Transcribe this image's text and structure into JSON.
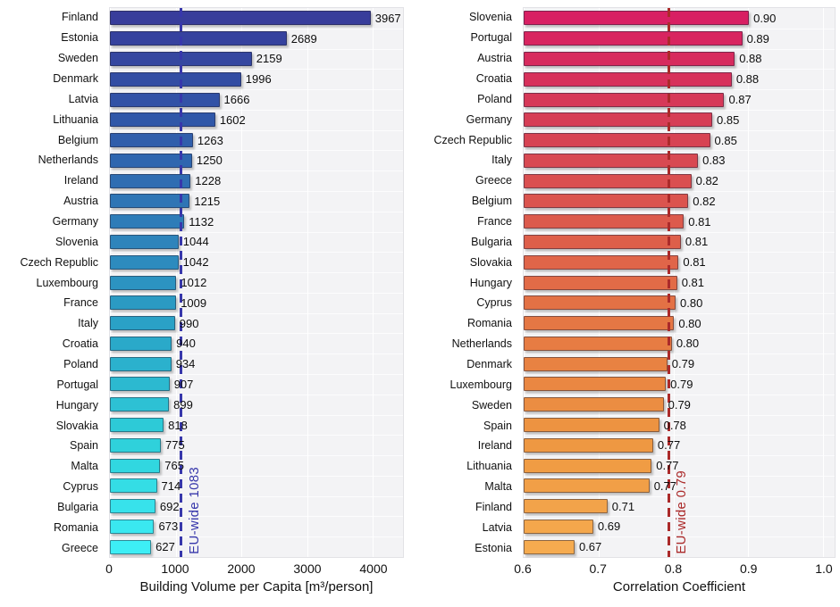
{
  "plot_style": {
    "plot_background": "#f3f3f5",
    "grid_color": "#ffffff",
    "figure_background": "#ffffff"
  },
  "chart_data": [
    {
      "type": "bar",
      "orientation": "horizontal",
      "title": "",
      "xlabel": "Building Volume per Capita [m³/person]",
      "ylabel": "",
      "axis": {
        "min": 0,
        "max": 4460,
        "ticks": [
          0,
          1000,
          2000,
          3000,
          4000
        ],
        "tick_labels": [
          "0",
          "1000",
          "2000",
          "3000",
          "4000"
        ]
      },
      "eu_line": {
        "value": 1083,
        "label": "EU-wide 1083",
        "color": "#3737ab"
      },
      "color_stops": [
        "#383d9b",
        "#3058a9",
        "#2e7fb9",
        "#2aa6c8",
        "#2ed0da",
        "#3deef5"
      ],
      "categories": [
        "Finland",
        "Estonia",
        "Sweden",
        "Denmark",
        "Latvia",
        "Lithuania",
        "Belgium",
        "Netherlands",
        "Ireland",
        "Austria",
        "Germany",
        "Slovenia",
        "Czech Republic",
        "Luxembourg",
        "France",
        "Italy",
        "Croatia",
        "Poland",
        "Portugal",
        "Hungary",
        "Slovakia",
        "Spain",
        "Malta",
        "Cyprus",
        "Bulgaria",
        "Romania",
        "Greece"
      ],
      "values": [
        3967,
        2689,
        2159,
        1996,
        1666,
        1602,
        1263,
        1250,
        1228,
        1215,
        1132,
        1044,
        1042,
        1012,
        1009,
        990,
        940,
        934,
        907,
        899,
        818,
        775,
        765,
        714,
        692,
        673,
        627
      ],
      "value_labels": [
        "3967",
        "2689",
        "2159",
        "1996",
        "1666",
        "1602",
        "1263",
        "1250",
        "1228",
        "1215",
        "1132",
        "1044",
        "1042",
        "1012",
        "1009",
        "990",
        "940",
        "934",
        "907",
        "899",
        "818",
        "775",
        "765",
        "714",
        "692",
        "673",
        "627"
      ]
    },
    {
      "type": "bar",
      "orientation": "horizontal",
      "title": "",
      "xlabel": "Correlation Coefficient",
      "ylabel": "",
      "axis": {
        "min": 0.6,
        "max": 1.0155,
        "ticks": [
          0.6,
          0.7,
          0.8,
          0.9,
          1.0
        ],
        "tick_labels": [
          "0.6",
          "0.7",
          "0.8",
          "0.9",
          "1.0"
        ]
      },
      "eu_line": {
        "value": 0.7935,
        "label": "EU-wide 0.79",
        "color": "#ab2a2a"
      },
      "color_stops": [
        "#d81f63",
        "#d63f55",
        "#dd5c4b",
        "#e67a43",
        "#ee9741",
        "#f5ab4f"
      ],
      "categories": [
        "Slovenia",
        "Portugal",
        "Austria",
        "Croatia",
        "Poland",
        "Germany",
        "Czech Republic",
        "Italy",
        "Greece",
        "Belgium",
        "France",
        "Bulgaria",
        "Slovakia",
        "Hungary",
        "Cyprus",
        "Romania",
        "Netherlands",
        "Denmark",
        "Luxembourg",
        "Sweden",
        "Spain",
        "Ireland",
        "Lithuania",
        "Malta",
        "Finland",
        "Latvia",
        "Estonia"
      ],
      "values": [
        0.9,
        0.89,
        0.88,
        0.88,
        0.87,
        0.85,
        0.85,
        0.83,
        0.82,
        0.82,
        0.81,
        0.81,
        0.81,
        0.81,
        0.8,
        0.8,
        0.8,
        0.79,
        0.79,
        0.79,
        0.78,
        0.77,
        0.77,
        0.77,
        0.71,
        0.69,
        0.67
      ],
      "bar_values": [
        0.901,
        0.892,
        0.882,
        0.878,
        0.868,
        0.852,
        0.849,
        0.833,
        0.824,
        0.82,
        0.814,
        0.81,
        0.807,
        0.805,
        0.803,
        0.801,
        0.798,
        0.792,
        0.79,
        0.787,
        0.781,
        0.773,
        0.771,
        0.768,
        0.712,
        0.693,
        0.668
      ],
      "value_labels": [
        "0.90",
        "0.89",
        "0.88",
        "0.88",
        "0.87",
        "0.85",
        "0.85",
        "0.83",
        "0.82",
        "0.82",
        "0.81",
        "0.81",
        "0.81",
        "0.81",
        "0.80",
        "0.80",
        "0.80",
        "0.79",
        "0.79",
        "0.79",
        "0.78",
        "0.77",
        "0.77",
        "0.77",
        "0.71",
        "0.69",
        "0.67"
      ]
    }
  ]
}
